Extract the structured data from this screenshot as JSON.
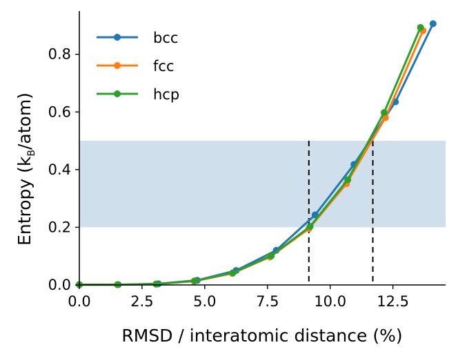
{
  "chart_data": {
    "type": "line",
    "xlabel": "RMSD / interatomic distance (%)",
    "ylabel": "Entropy (k_B/atom)",
    "ylabel_parts": {
      "pre": "Entropy (k",
      "sub": "B",
      "post": "/atom)"
    },
    "xlim": [
      0,
      14.6
    ],
    "ylim": [
      0,
      0.95
    ],
    "xticks": [
      0.0,
      2.5,
      5.0,
      7.5,
      10.0,
      12.5
    ],
    "xtick_labels": [
      "0.0",
      "2.5",
      "5.0",
      "7.5",
      "10.0",
      "12.5"
    ],
    "yticks": [
      0.0,
      0.2,
      0.4,
      0.6,
      0.8
    ],
    "ytick_labels": [
      "0.0",
      "0.2",
      "0.4",
      "0.6",
      "0.8"
    ],
    "shaded_band": {
      "y0": 0.2,
      "y1": 0.5,
      "color": "#cfe0ec"
    },
    "vlines": [
      {
        "x": 9.15,
        "style": "dashed",
        "color": "#000000"
      },
      {
        "x": 11.7,
        "style": "dashed",
        "color": "#000000"
      }
    ],
    "legend": {
      "position": "top-left",
      "entries": [
        "bcc",
        "fcc",
        "hcp"
      ]
    },
    "series": [
      {
        "name": "bcc",
        "color": "#1f77b4",
        "x": [
          0.0,
          1.55,
          3.15,
          4.7,
          6.25,
          7.85,
          9.4,
          10.95,
          12.6,
          14.1
        ],
        "y": [
          0.001,
          0.001,
          0.004,
          0.016,
          0.05,
          0.12,
          0.243,
          0.418,
          0.635,
          0.906
        ]
      },
      {
        "name": "fcc",
        "color": "#ff7f0e",
        "x": [
          0.0,
          1.52,
          3.05,
          4.57,
          6.1,
          7.6,
          9.15,
          10.65,
          12.2,
          13.7
        ],
        "y": [
          0.001,
          0.001,
          0.003,
          0.013,
          0.04,
          0.097,
          0.195,
          0.351,
          0.58,
          0.882
        ]
      },
      {
        "name": "hcp",
        "color": "#2ca02c",
        "x": [
          0.0,
          1.53,
          3.07,
          4.6,
          6.12,
          7.65,
          9.2,
          10.7,
          12.15,
          13.6
        ],
        "y": [
          0.001,
          0.001,
          0.003,
          0.014,
          0.042,
          0.101,
          0.203,
          0.365,
          0.598,
          0.893
        ]
      }
    ]
  }
}
